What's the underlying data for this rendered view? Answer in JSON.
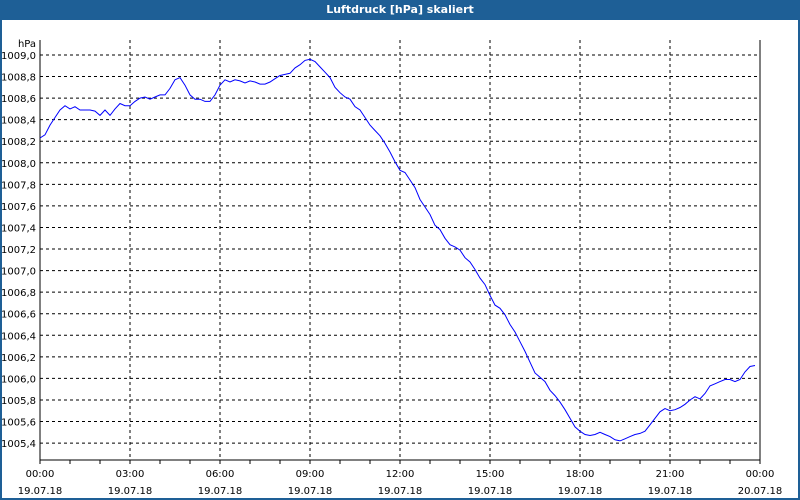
{
  "window": {
    "title": "Luftdruck [hPa] skaliert",
    "title_bg": "#1e5f96"
  },
  "chart_data": {
    "type": "line",
    "title": "Luftdruck [hPa] skaliert",
    "ylabel": "hPa",
    "xlabel": "",
    "ylim": [
      1005.25,
      1009.15
    ],
    "xlim_hours": [
      0,
      24
    ],
    "y_ticks": [
      1009.0,
      1008.8,
      1008.6,
      1008.4,
      1008.2,
      1008.0,
      1007.8,
      1007.6,
      1007.4,
      1007.2,
      1007.0,
      1006.8,
      1006.6,
      1006.4,
      1006.2,
      1006.0,
      1005.8,
      1005.6,
      1005.4
    ],
    "y_tick_labels": [
      "1009,0",
      "1008,8",
      "1008,6",
      "1008,4",
      "1008,2",
      "1008,0",
      "1007,8",
      "1007,6",
      "1007,4",
      "1007,2",
      "1007,0",
      "1006,8",
      "1006,6",
      "1006,4",
      "1006,2",
      "1006,0",
      "1005,8",
      "1005,6",
      "1005,4"
    ],
    "x_ticks": [
      {
        "hour": 0,
        "time": "00:00",
        "date": "19.07.18"
      },
      {
        "hour": 3,
        "time": "03:00",
        "date": "19.07.18"
      },
      {
        "hour": 6,
        "time": "06:00",
        "date": "19.07.18"
      },
      {
        "hour": 9,
        "time": "09:00",
        "date": "19.07.18"
      },
      {
        "hour": 12,
        "time": "12:00",
        "date": "19.07.18"
      },
      {
        "hour": 15,
        "time": "15:00",
        "date": "19.07.18"
      },
      {
        "hour": 18,
        "time": "18:00",
        "date": "19.07.18"
      },
      {
        "hour": 21,
        "time": "21:00",
        "date": "19.07.18"
      },
      {
        "hour": 24,
        "time": "00:00",
        "date": "20.07.18"
      }
    ],
    "grid": true,
    "series": [
      {
        "name": "Luftdruck",
        "color": "#0000ff",
        "start_hour": 0,
        "interval_minutes": 10,
        "values": [
          1008.23,
          1008.26,
          1008.35,
          1008.42,
          1008.49,
          1008.53,
          1008.5,
          1008.52,
          1008.49,
          1008.49,
          1008.49,
          1008.48,
          1008.44,
          1008.49,
          1008.44,
          1008.5,
          1008.55,
          1008.53,
          1008.53,
          1008.57,
          1008.6,
          1008.61,
          1008.59,
          1008.61,
          1008.63,
          1008.63,
          1008.69,
          1008.77,
          1008.79,
          1008.72,
          1008.63,
          1008.59,
          1008.59,
          1008.57,
          1008.57,
          1008.63,
          1008.72,
          1008.77,
          1008.75,
          1008.77,
          1008.76,
          1008.74,
          1008.76,
          1008.75,
          1008.73,
          1008.73,
          1008.75,
          1008.78,
          1008.81,
          1008.82,
          1008.83,
          1008.88,
          1008.91,
          1008.95,
          1008.96,
          1008.94,
          1008.89,
          1008.84,
          1008.79,
          1008.7,
          1008.65,
          1008.61,
          1008.59,
          1008.52,
          1008.49,
          1008.42,
          1008.35,
          1008.3,
          1008.25,
          1008.18,
          1008.1,
          1008.01,
          1007.93,
          1007.91,
          1007.84,
          1007.77,
          1007.66,
          1007.59,
          1007.52,
          1007.42,
          1007.38,
          1007.3,
          1007.24,
          1007.22,
          1007.19,
          1007.12,
          1007.08,
          1007.01,
          1006.93,
          1006.87,
          1006.77,
          1006.68,
          1006.65,
          1006.59,
          1006.5,
          1006.43,
          1006.34,
          1006.25,
          1006.15,
          1006.05,
          1006.01,
          1005.97,
          1005.89,
          1005.84,
          1005.78,
          1005.71,
          1005.63,
          1005.55,
          1005.51,
          1005.48,
          1005.47,
          1005.48,
          1005.5,
          1005.48,
          1005.46,
          1005.43,
          1005.42,
          1005.44,
          1005.46,
          1005.48,
          1005.49,
          1005.51,
          1005.57,
          1005.63,
          1005.69,
          1005.72,
          1005.7,
          1005.71,
          1005.73,
          1005.76,
          1005.8,
          1005.83,
          1005.81,
          1005.86,
          1005.93,
          1005.95,
          1005.97,
          1005.99,
          1005.99,
          1005.97,
          1005.99,
          1006.06,
          1006.11,
          1006.12
        ]
      }
    ]
  }
}
